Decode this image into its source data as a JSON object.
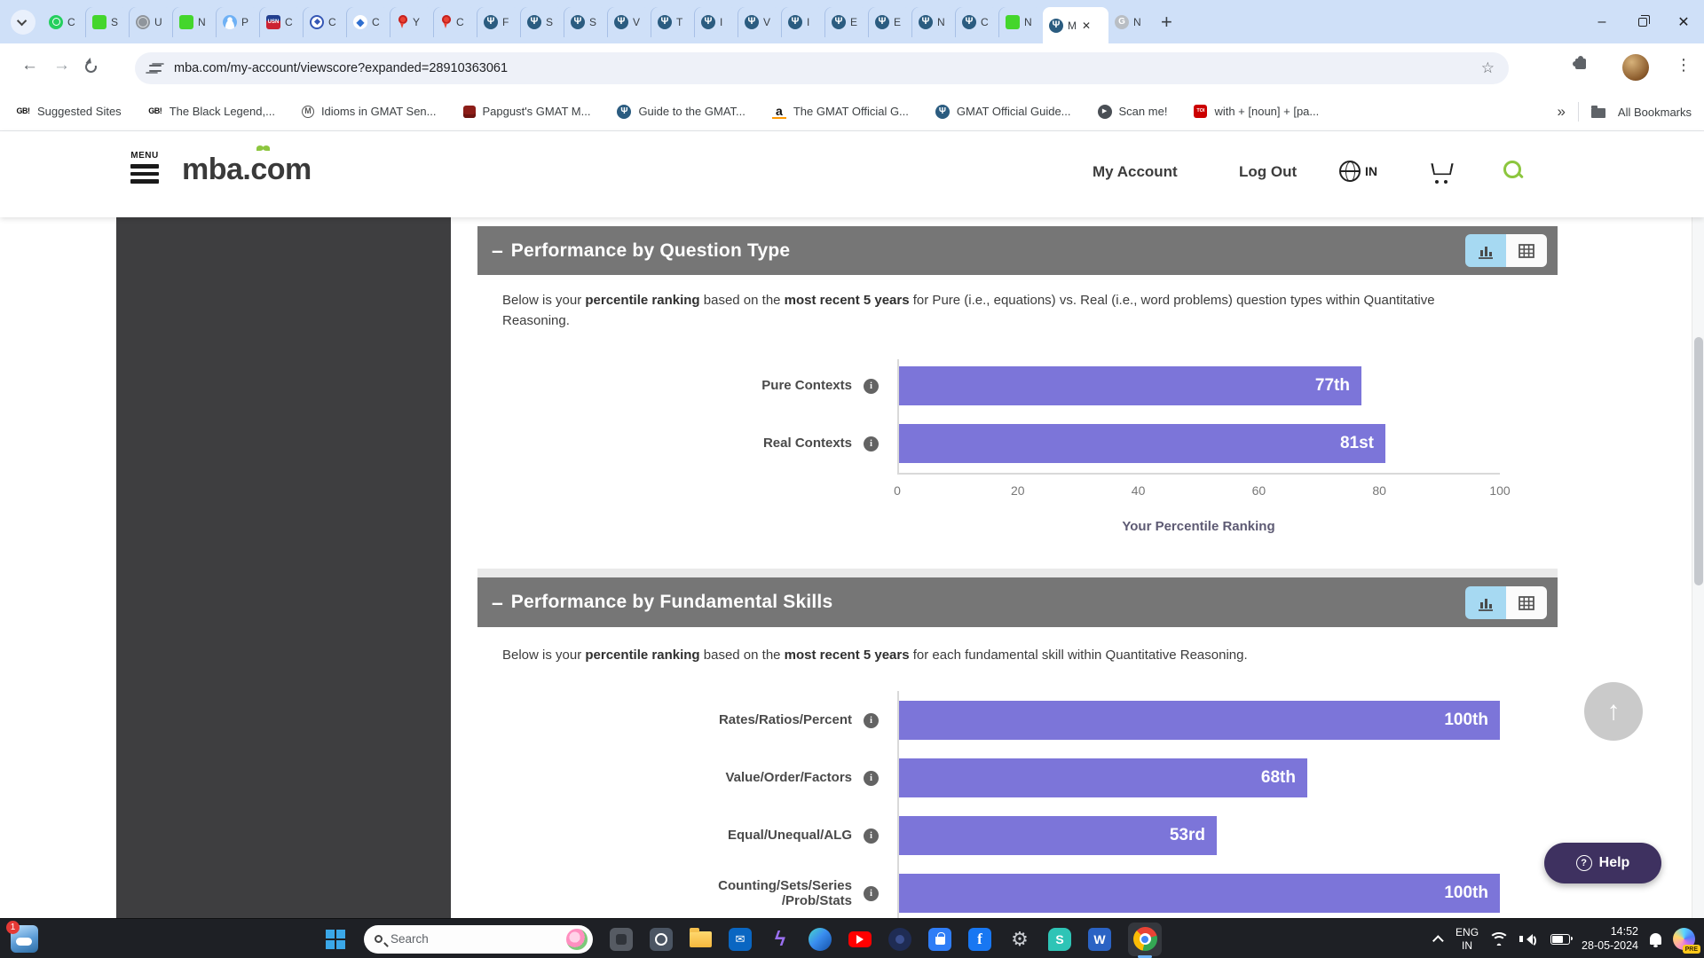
{
  "glyphs": {
    "minimize": "–",
    "close": "✕",
    "new_tab": "+",
    "overflow_chevrons": "»",
    "scroll_top_arrow": "↑",
    "help_question": "?",
    "info": "i",
    "star": "☆",
    "back": "←",
    "forward": "→",
    "kebab": "⋮",
    "mba_figure": "Ψ",
    "play": "▶",
    "lightning": "ϟ",
    "gear": "⚙",
    "envelope": "✉"
  },
  "browser": {
    "url": "mba.com/my-account/viewscore?expanded=28910363061",
    "tabs": [
      {
        "icon": "whatsapp",
        "label": "C"
      },
      {
        "icon": "sheets",
        "label": "S"
      },
      {
        "icon": "globe",
        "label": "U"
      },
      {
        "icon": "sheets",
        "label": "N"
      },
      {
        "icon": "person",
        "label": "P"
      },
      {
        "icon": "usn",
        "label": "C"
      },
      {
        "icon": "compass",
        "label": "C"
      },
      {
        "icon": "edu",
        "label": "C"
      },
      {
        "icon": "mappin",
        "label": "Y"
      },
      {
        "icon": "mappin",
        "label": "C"
      },
      {
        "icon": "mba",
        "label": "F"
      },
      {
        "icon": "mba",
        "label": "S"
      },
      {
        "icon": "mba",
        "label": "S"
      },
      {
        "icon": "mba",
        "label": "V"
      },
      {
        "icon": "mba",
        "label": "T"
      },
      {
        "icon": "mba",
        "label": "I"
      },
      {
        "icon": "mba",
        "label": "V"
      },
      {
        "icon": "mba",
        "label": "I"
      },
      {
        "icon": "mba",
        "label": "E"
      },
      {
        "icon": "mba",
        "label": "E"
      },
      {
        "icon": "mba",
        "label": "N"
      },
      {
        "icon": "mba",
        "label": "C"
      },
      {
        "icon": "sheets",
        "label": "N"
      },
      {
        "icon": "mba",
        "label": "M",
        "active": true
      },
      {
        "icon": "gmatclub",
        "label": "N"
      }
    ],
    "bookmarks": [
      {
        "icon": "gb",
        "label": "Suggested Sites"
      },
      {
        "icon": "gb",
        "label": "The Black Legend,..."
      },
      {
        "icon": "mcirc",
        "label": "Idioms in GMAT Sen..."
      },
      {
        "icon": "redbook",
        "label": "Papgust's GMAT M..."
      },
      {
        "icon": "mba",
        "label": "Guide to the GMAT..."
      },
      {
        "icon": "amazon",
        "label": "The GMAT Official G..."
      },
      {
        "icon": "mba",
        "label": "GMAT Official Guide..."
      },
      {
        "icon": "scan",
        "label": "Scan me!"
      },
      {
        "icon": "toi",
        "label": "with + [noun] + [pa..."
      }
    ],
    "all_bookmarks_label": "All Bookmarks"
  },
  "site": {
    "menu_label": "MENU",
    "logo_part1": "mba",
    "logo_part2": ".com",
    "nav_my_account": "My Account",
    "nav_log_out": "Log Out",
    "locale": "IN"
  },
  "sections": [
    {
      "collapse_glyph": "–",
      "title": "Performance by Question Type",
      "intro": {
        "p1": "Below is your ",
        "p2": "percentile ranking",
        "p3": " based on the ",
        "p4": "most recent 5 years",
        "p5": " for Pure (i.e., equations) vs. Real (i.e., word problems) question types within Quantitative Reasoning."
      }
    },
    {
      "collapse_glyph": "–",
      "title": "Performance by Fundamental Skills",
      "intro": {
        "p1": "Below is your ",
        "p2": "percentile ranking",
        "p3": " based on the ",
        "p4": "most recent 5 years",
        "p5": " for each fundamental skill within Quantitative Reasoning."
      }
    }
  ],
  "chart_data": [
    {
      "type": "bar",
      "orientation": "horizontal",
      "categories": [
        "Pure Contexts",
        "Real Contexts"
      ],
      "values": [
        77,
        81
      ],
      "value_labels": [
        "77th",
        "81st"
      ],
      "ticks": [
        0,
        20,
        40,
        60,
        80,
        100
      ],
      "xlim": [
        0,
        100
      ],
      "xlabel": "Your Percentile Ranking",
      "bar_color": "#7c75d9"
    },
    {
      "type": "bar",
      "orientation": "horizontal",
      "categories": [
        "Rates/Ratios/Percent",
        "Value/Order/Factors",
        "Equal/Unequal/ALG",
        "Counting/Sets/Series\n/Prob/Stats"
      ],
      "values": [
        100,
        68,
        53,
        100
      ],
      "value_labels": [
        "100th",
        "68th",
        "53rd",
        "100th"
      ],
      "ticks": [],
      "xlim": [
        0,
        100
      ],
      "xlabel": "",
      "bar_color": "#7c75d9"
    }
  ],
  "floating": {
    "help_label": "Help"
  },
  "taskbar": {
    "search_label": "Search",
    "notification_count": "1",
    "app_icons": [
      "appgray",
      "camera",
      "folder",
      "outlook",
      "lightning",
      "edge",
      "youtube",
      "navyapp",
      "store",
      "facebook",
      "gear",
      "surfshark",
      "word",
      "chrome"
    ],
    "tray": {
      "lang_line1": "ENG",
      "lang_line2": "IN",
      "time": "14:52",
      "date": "28-05-2024",
      "copilot_badge": "PRE"
    }
  }
}
